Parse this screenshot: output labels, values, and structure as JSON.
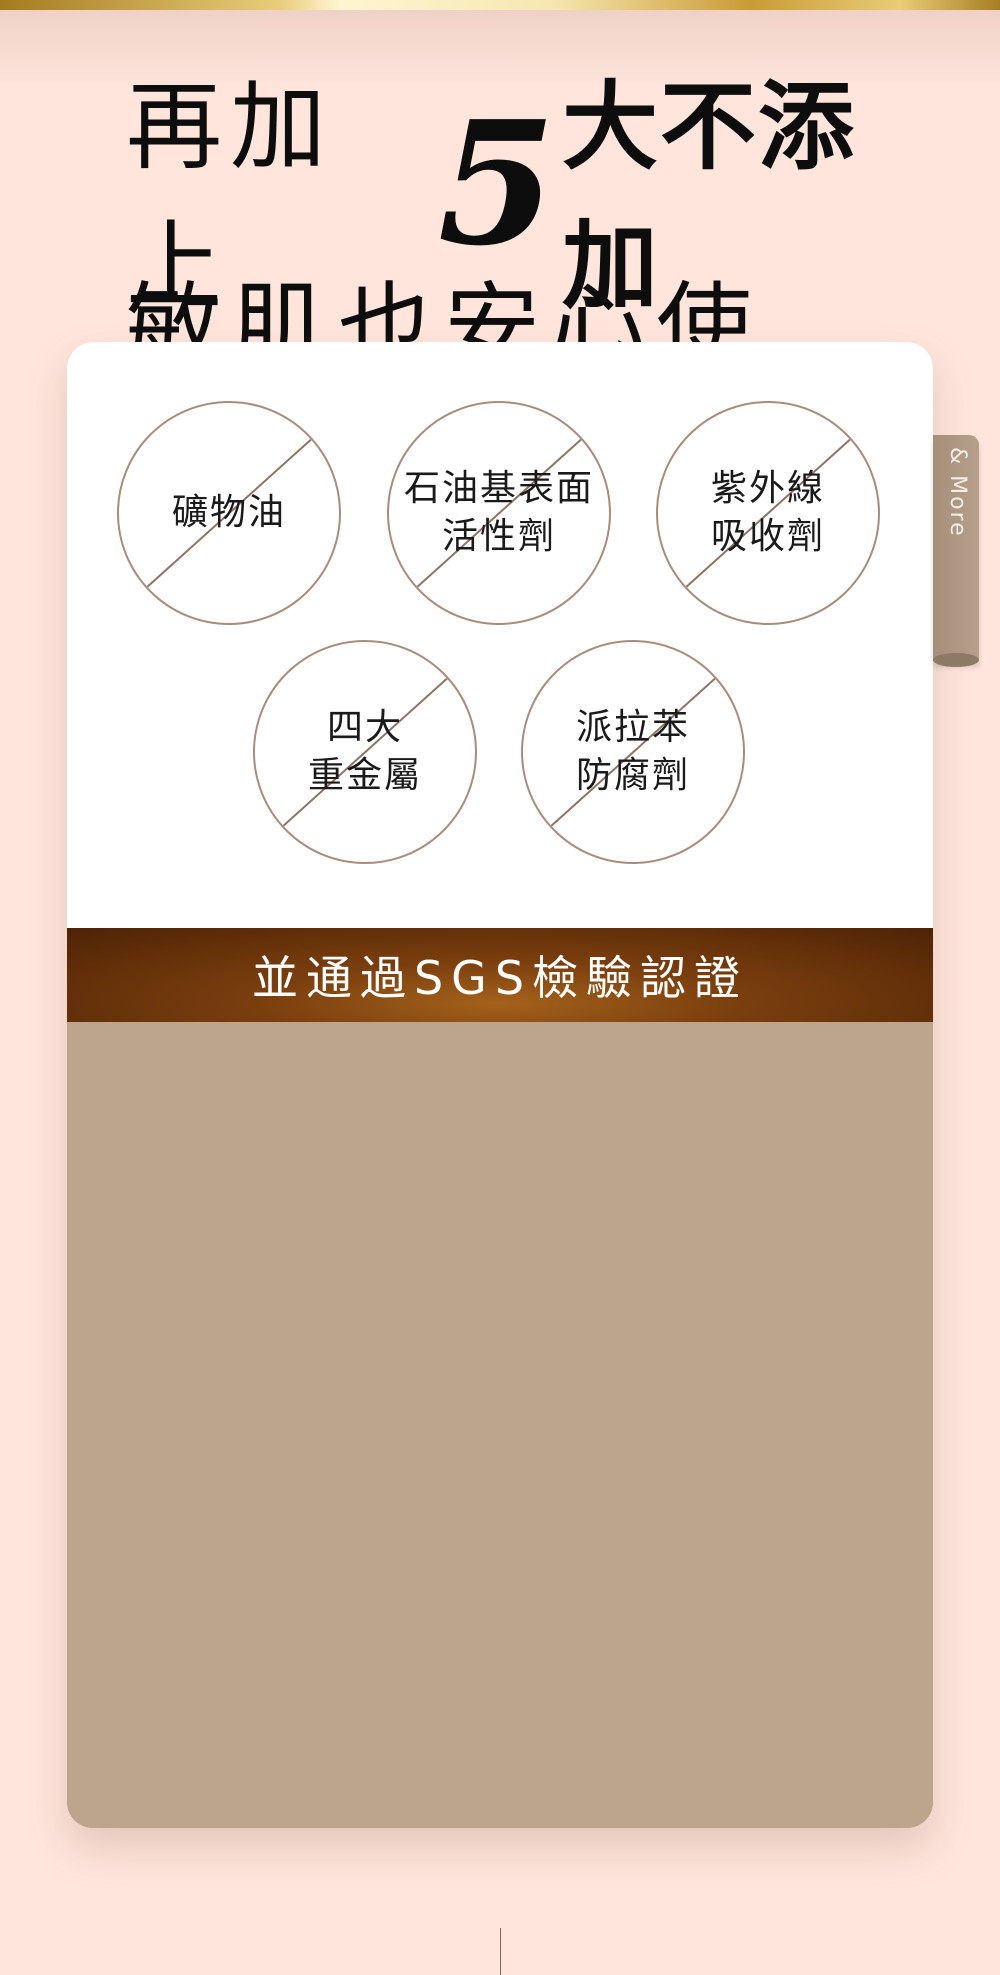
{
  "headline": {
    "line1_prefix": "再加上",
    "line1_number": "5",
    "line1_suffix": "大不添加",
    "line2": "敏肌也安心使用！"
  },
  "free_from_items": [
    {
      "label": "礦物油"
    },
    {
      "label": "石油基表面\n活性劑"
    },
    {
      "label": "紫外線\n吸收劑"
    },
    {
      "label": "四大\n重金屬"
    },
    {
      "label": "派拉苯\n防腐劑"
    }
  ],
  "banner": {
    "text": "並通過SGS檢驗認證"
  },
  "side_tab": {
    "label": "& More"
  },
  "colors": {
    "background": "#ffe5dc",
    "card_bottom": "#bca58c",
    "banner_dark": "#4e2305",
    "banner_light": "#a4621b",
    "circle_border": "#a88d7c"
  }
}
